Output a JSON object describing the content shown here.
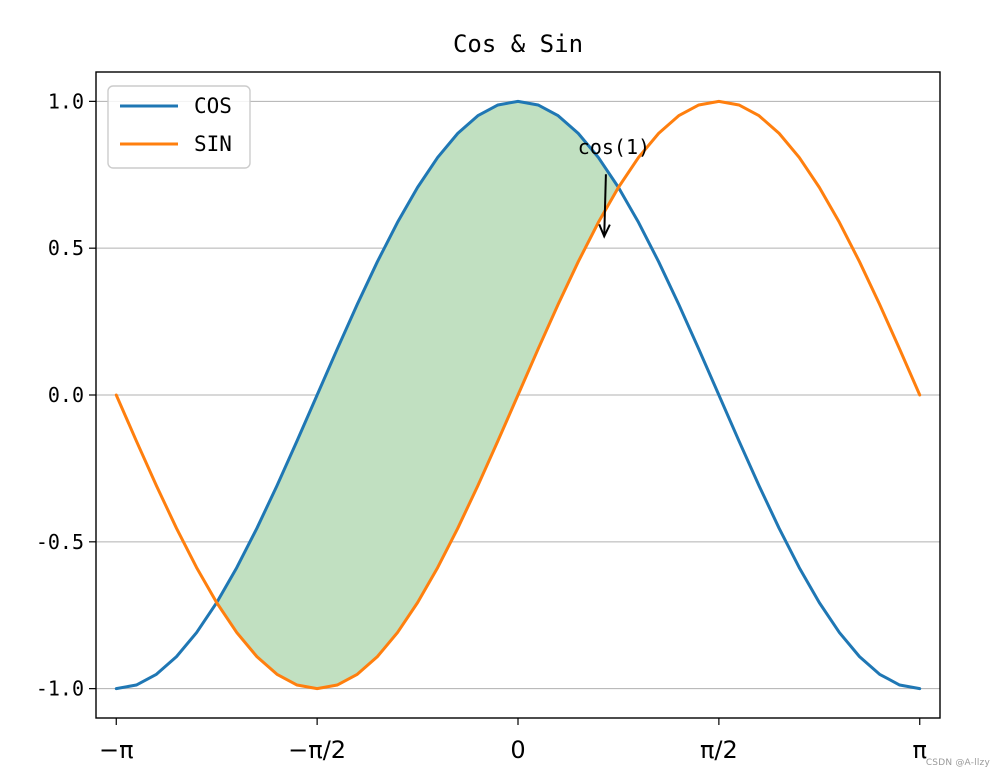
{
  "chart_data": {
    "type": "line",
    "title": "Cos & Sin",
    "xlabel": "",
    "ylabel": "",
    "xlim": [
      -3.3,
      3.3
    ],
    "ylim": [
      -1.1,
      1.1
    ],
    "x_ticks": [
      {
        "value": -3.141592653589793,
        "label": "−π"
      },
      {
        "value": -1.5707963267948966,
        "label": "−π/2"
      },
      {
        "value": 0,
        "label": "0"
      },
      {
        "value": 1.5707963267948966,
        "label": "π/2"
      },
      {
        "value": 3.141592653589793,
        "label": "π"
      }
    ],
    "y_ticks": [
      {
        "value": -1.0,
        "label": "-1.0"
      },
      {
        "value": -0.5,
        "label": "-0.5"
      },
      {
        "value": 0.0,
        "label": "0.0"
      },
      {
        "value": 0.5,
        "label": "0.5"
      },
      {
        "value": 1.0,
        "label": "1.0"
      }
    ],
    "grid": "y-only",
    "legend": {
      "position": "top-left"
    },
    "series": [
      {
        "name": "COS",
        "color": "#1f77b4",
        "x": [
          -3.1416,
          -2.9845,
          -2.8274,
          -2.6704,
          -2.5133,
          -2.3562,
          -2.1991,
          -2.042,
          -1.885,
          -1.7279,
          -1.5708,
          -1.4137,
          -1.2566,
          -1.0996,
          -0.9425,
          -0.7854,
          -0.6283,
          -0.4712,
          -0.3142,
          -0.1571,
          0.0,
          0.1571,
          0.3142,
          0.4712,
          0.6283,
          0.7854,
          0.9425,
          1.0996,
          1.2566,
          1.4137,
          1.5708,
          1.7279,
          1.885,
          2.042,
          2.1991,
          2.3562,
          2.5133,
          2.6704,
          2.8274,
          2.9845,
          3.1416
        ],
        "y": [
          -1.0,
          -0.9877,
          -0.9511,
          -0.891,
          -0.809,
          -0.7071,
          -0.5878,
          -0.454,
          -0.309,
          -0.1564,
          0.0,
          0.1564,
          0.309,
          0.454,
          0.5878,
          0.7071,
          0.809,
          0.891,
          0.9511,
          0.9877,
          1.0,
          0.9877,
          0.9511,
          0.891,
          0.809,
          0.7071,
          0.5878,
          0.454,
          0.309,
          0.1564,
          0.0,
          -0.1564,
          -0.309,
          -0.454,
          -0.5878,
          -0.7071,
          -0.809,
          -0.891,
          -0.9511,
          -0.9877,
          -1.0
        ]
      },
      {
        "name": "SIN",
        "color": "#ff7f0e",
        "x": [
          -3.1416,
          -2.9845,
          -2.8274,
          -2.6704,
          -2.5133,
          -2.3562,
          -2.1991,
          -2.042,
          -1.885,
          -1.7279,
          -1.5708,
          -1.4137,
          -1.2566,
          -1.0996,
          -0.9425,
          -0.7854,
          -0.6283,
          -0.4712,
          -0.3142,
          -0.1571,
          0.0,
          0.1571,
          0.3142,
          0.4712,
          0.6283,
          0.7854,
          0.9425,
          1.0996,
          1.2566,
          1.4137,
          1.5708,
          1.7279,
          1.885,
          2.042,
          2.1991,
          2.3562,
          2.5133,
          2.6704,
          2.8274,
          2.9845,
          3.1416
        ],
        "y": [
          0.0,
          -0.1564,
          -0.309,
          -0.454,
          -0.5878,
          -0.7071,
          -0.809,
          -0.891,
          -0.9511,
          -0.9877,
          -1.0,
          -0.9877,
          -0.9511,
          -0.891,
          -0.809,
          -0.7071,
          -0.5878,
          -0.454,
          -0.309,
          -0.1564,
          0.0,
          0.1564,
          0.309,
          0.454,
          0.5878,
          0.7071,
          0.809,
          0.891,
          0.9511,
          0.9877,
          1.0,
          0.9877,
          0.9511,
          0.891,
          0.809,
          0.7071,
          0.5878,
          0.454,
          0.309,
          0.1564,
          0.0
        ]
      }
    ],
    "fill_between": {
      "x_range": [
        -2.3562,
        0.7854
      ],
      "color": "#c1e0c1",
      "upper": "COS",
      "lower": "SIN"
    },
    "annotation": {
      "text": "cos(1)",
      "point": [
        0.6742,
        0.5403
      ],
      "text_position": [
        0.75,
        0.82
      ]
    }
  },
  "watermark": "CSDN @A-llzy"
}
